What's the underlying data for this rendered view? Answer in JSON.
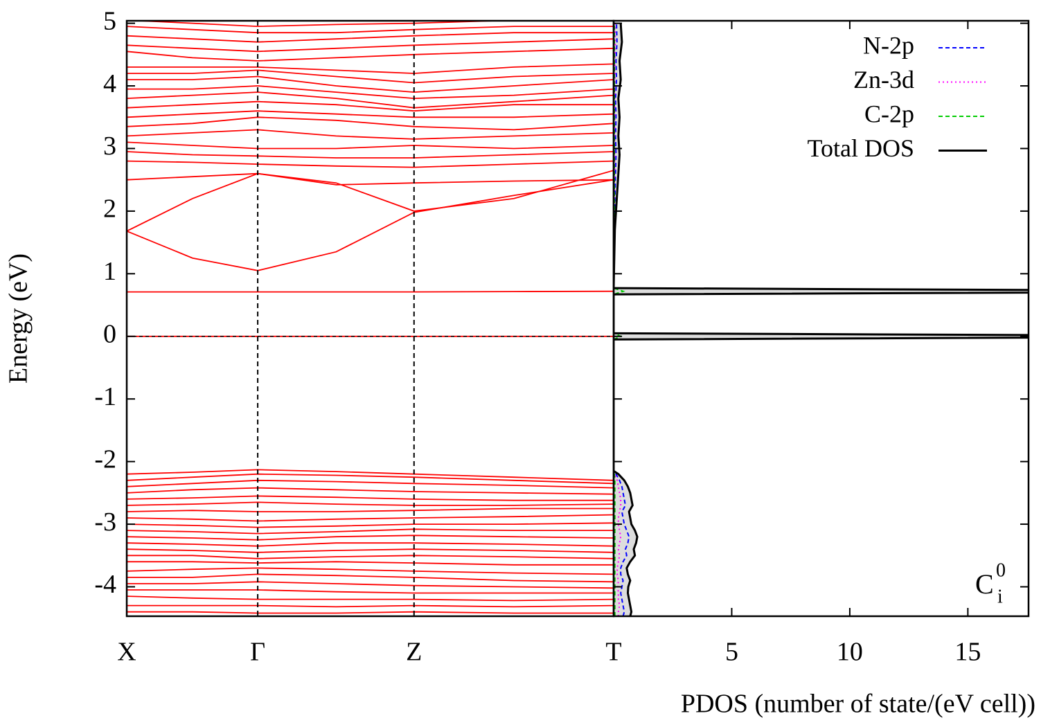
{
  "chart_data": [
    {
      "type": "line",
      "ylabel": "Energy (eV)",
      "ylim": [
        -4.47,
        5.04
      ],
      "yticks": [
        -4,
        -3,
        -2,
        -1,
        0,
        1,
        2,
        3,
        4,
        5
      ],
      "xlim": [
        0,
        1
      ],
      "xticks": [
        {
          "value": 0,
          "label": "X"
        },
        {
          "value": 0.269,
          "label": "Γ"
        },
        {
          "value": 0.59,
          "label": "Z"
        },
        {
          "value": 1,
          "label": "T"
        }
      ],
      "dashed_kpoint_lines": true,
      "fermi_level": 0,
      "color": "#ff0000",
      "x": [
        0,
        0.135,
        0.269,
        0.43,
        0.59,
        0.795,
        1.0
      ],
      "bands": [
        [
          1.68,
          1.25,
          1.05,
          1.35,
          1.98,
          2.25,
          2.5
        ],
        [
          1.68,
          2.2,
          2.6,
          2.45,
          2.0,
          2.2,
          2.65
        ],
        [
          2.5,
          2.55,
          2.6,
          2.42,
          2.45,
          2.48,
          2.5
        ],
        [
          2.8,
          2.78,
          2.75,
          2.72,
          2.7,
          2.75,
          2.8
        ],
        [
          2.95,
          2.9,
          2.88,
          2.85,
          2.85,
          2.9,
          2.95
        ],
        [
          3.1,
          3.05,
          3.0,
          3.0,
          3.05,
          3.0,
          3.05
        ],
        [
          3.2,
          3.25,
          3.3,
          3.2,
          3.15,
          3.2,
          3.25
        ],
        [
          3.35,
          3.4,
          3.5,
          3.45,
          3.35,
          3.3,
          3.4
        ],
        [
          3.5,
          3.55,
          3.6,
          3.55,
          3.5,
          3.5,
          3.55
        ],
        [
          3.65,
          3.7,
          3.75,
          3.7,
          3.6,
          3.7,
          3.7
        ],
        [
          3.8,
          3.85,
          3.9,
          3.8,
          3.65,
          3.75,
          3.85
        ],
        [
          3.95,
          3.95,
          4.0,
          3.9,
          3.8,
          3.85,
          3.95
        ],
        [
          4.1,
          4.1,
          4.15,
          4.0,
          3.9,
          4.0,
          4.1
        ],
        [
          4.2,
          4.2,
          4.25,
          4.15,
          4.05,
          4.15,
          4.2
        ],
        [
          4.3,
          4.3,
          4.3,
          4.25,
          4.2,
          4.3,
          4.35
        ],
        [
          4.55,
          4.45,
          4.4,
          4.45,
          4.5,
          4.55,
          4.6
        ],
        [
          4.65,
          4.6,
          4.55,
          4.6,
          4.65,
          4.7,
          4.75
        ],
        [
          4.8,
          4.75,
          4.7,
          4.75,
          4.8,
          4.85,
          4.85
        ],
        [
          4.95,
          4.9,
          4.85,
          4.85,
          4.9,
          4.95,
          4.95
        ],
        [
          5.05,
          5.0,
          4.95,
          4.98,
          5.0,
          5.05,
          5.05
        ],
        [
          0.71,
          0.71,
          0.71,
          0.71,
          0.71,
          0.715,
          0.72
        ],
        [
          0,
          0,
          0,
          0,
          0,
          0,
          0
        ],
        [
          -2.2,
          -2.17,
          -2.13,
          -2.16,
          -2.2,
          -2.25,
          -2.3
        ],
        [
          -2.3,
          -2.25,
          -2.2,
          -2.22,
          -2.25,
          -2.3,
          -2.35
        ],
        [
          -2.4,
          -2.35,
          -2.3,
          -2.32,
          -2.35,
          -2.38,
          -2.42
        ],
        [
          -2.5,
          -2.45,
          -2.42,
          -2.45,
          -2.48,
          -2.5,
          -2.52
        ],
        [
          -2.6,
          -2.58,
          -2.55,
          -2.57,
          -2.6,
          -2.62,
          -2.62
        ],
        [
          -2.7,
          -2.68,
          -2.65,
          -2.68,
          -2.7,
          -2.7,
          -2.68
        ],
        [
          -2.8,
          -2.78,
          -2.8,
          -2.8,
          -2.78,
          -2.75,
          -2.75
        ],
        [
          -2.9,
          -2.92,
          -2.95,
          -2.92,
          -2.9,
          -2.88,
          -2.85
        ],
        [
          -3.0,
          -3.02,
          -3.05,
          -3.03,
          -3.0,
          -3.0,
          -2.98
        ],
        [
          -3.1,
          -3.12,
          -3.15,
          -3.12,
          -3.08,
          -3.1,
          -3.1
        ],
        [
          -3.2,
          -3.22,
          -3.25,
          -3.2,
          -3.18,
          -3.2,
          -3.22
        ],
        [
          -3.3,
          -3.32,
          -3.35,
          -3.3,
          -3.3,
          -3.32,
          -3.35
        ],
        [
          -3.4,
          -3.42,
          -3.45,
          -3.42,
          -3.4,
          -3.42,
          -3.45
        ],
        [
          -3.5,
          -3.5,
          -3.55,
          -3.52,
          -3.5,
          -3.52,
          -3.55
        ],
        [
          -3.6,
          -3.6,
          -3.62,
          -3.6,
          -3.62,
          -3.65,
          -3.65
        ],
        [
          -3.75,
          -3.72,
          -3.7,
          -3.72,
          -3.75,
          -3.78,
          -3.8
        ],
        [
          -3.85,
          -3.85,
          -3.8,
          -3.82,
          -3.85,
          -3.9,
          -3.92
        ],
        [
          -3.95,
          -3.95,
          -3.92,
          -3.95,
          -3.98,
          -4.0,
          -4.02
        ],
        [
          -4.05,
          -4.05,
          -4.05,
          -4.08,
          -4.1,
          -4.1,
          -4.1
        ],
        [
          -4.15,
          -4.18,
          -4.2,
          -4.2,
          -4.2,
          -4.22,
          -4.2
        ],
        [
          -4.3,
          -4.3,
          -4.3,
          -4.32,
          -4.3,
          -4.32,
          -4.3
        ],
        [
          -4.4,
          -4.4,
          -4.42,
          -4.42,
          -4.4,
          -4.42,
          -4.42
        ]
      ]
    },
    {
      "type": "line",
      "orientation": "horizontal",
      "xlabel": "PDOS (number of state/(eV cell))",
      "xlim": [
        0,
        17.57
      ],
      "xticks": [
        5,
        10,
        15
      ],
      "legend": "upper right",
      "energy": [
        -4.47,
        -4.4,
        -4.3,
        -4.2,
        -4.1,
        -4.0,
        -3.9,
        -3.8,
        -3.7,
        -3.6,
        -3.5,
        -3.4,
        -3.3,
        -3.2,
        -3.1,
        -3.0,
        -2.9,
        -2.8,
        -2.7,
        -2.6,
        -2.5,
        -2.4,
        -2.3,
        -2.2,
        -2.15,
        -0.05,
        0,
        0.05,
        0.67,
        0.72,
        0.77,
        1.7,
        2.0,
        2.3,
        2.6,
        2.9,
        3.2,
        3.5,
        3.8,
        4.1,
        4.4,
        4.7,
        5.0
      ],
      "series": [
        {
          "name": "N-2p",
          "color": "#0000ff",
          "dash": "6,4",
          "values": [
            0.4,
            0.45,
            0.4,
            0.35,
            0.3,
            0.35,
            0.4,
            0.3,
            0.3,
            0.4,
            0.55,
            0.5,
            0.6,
            0.65,
            0.55,
            0.45,
            0.4,
            0.35,
            0.5,
            0.45,
            0.4,
            0.35,
            0.25,
            0.1,
            0,
            0,
            0,
            0,
            0,
            0,
            0,
            0.02,
            0.04,
            0.06,
            0.08,
            0.1,
            0.08,
            0.1,
            0.08,
            0.12,
            0.1,
            0.14,
            0.12
          ]
        },
        {
          "name": "Zn-3d",
          "color": "#ff00ff",
          "dash": "2,4",
          "values": [
            0.2,
            0.2,
            0.25,
            0.2,
            0.2,
            0.18,
            0.2,
            0.15,
            0.15,
            0.2,
            0.25,
            0.2,
            0.25,
            0.3,
            0.25,
            0.2,
            0.2,
            0.25,
            0.3,
            0.3,
            0.25,
            0.2,
            0.15,
            0.05,
            0,
            0,
            0,
            0,
            0,
            0,
            0,
            0.01,
            0.02,
            0.03,
            0.04,
            0.05,
            0.04,
            0.05,
            0.04,
            0.06,
            0.05,
            0.07,
            0.06
          ]
        },
        {
          "name": "C-2p",
          "color": "#00cc00",
          "dash": "6,4",
          "values": [
            0.05,
            0.05,
            0.05,
            0.05,
            0.05,
            0.05,
            0.05,
            0.05,
            0.05,
            0.05,
            0.05,
            0.05,
            0.05,
            0.05,
            0.05,
            0.05,
            0.05,
            0.05,
            0.05,
            0.05,
            0.05,
            0.05,
            0.05,
            0.03,
            0,
            0,
            0.3,
            0,
            0,
            0.4,
            0,
            0.02,
            0.03,
            0.03,
            0.03,
            0.03,
            0.03,
            0.03,
            0.03,
            0.03,
            0.03,
            0.03,
            0.03
          ]
        },
        {
          "name": "Total DOS",
          "color": "#000000",
          "dash": "none",
          "fill": "#dddddd",
          "values": [
            0.7,
            0.75,
            0.7,
            0.65,
            0.6,
            0.62,
            0.7,
            0.6,
            0.55,
            0.7,
            0.9,
            0.85,
            0.95,
            1.0,
            0.9,
            0.75,
            0.7,
            0.65,
            0.8,
            0.75,
            0.7,
            0.6,
            0.45,
            0.2,
            0,
            0,
            30,
            0,
            0,
            30,
            0,
            0.05,
            0.1,
            0.15,
            0.2,
            0.25,
            0.2,
            0.25,
            0.2,
            0.3,
            0.25,
            0.35,
            0.3
          ]
        }
      ],
      "annotation": {
        "base": "C",
        "sub": "i",
        "sup": "0"
      }
    }
  ]
}
